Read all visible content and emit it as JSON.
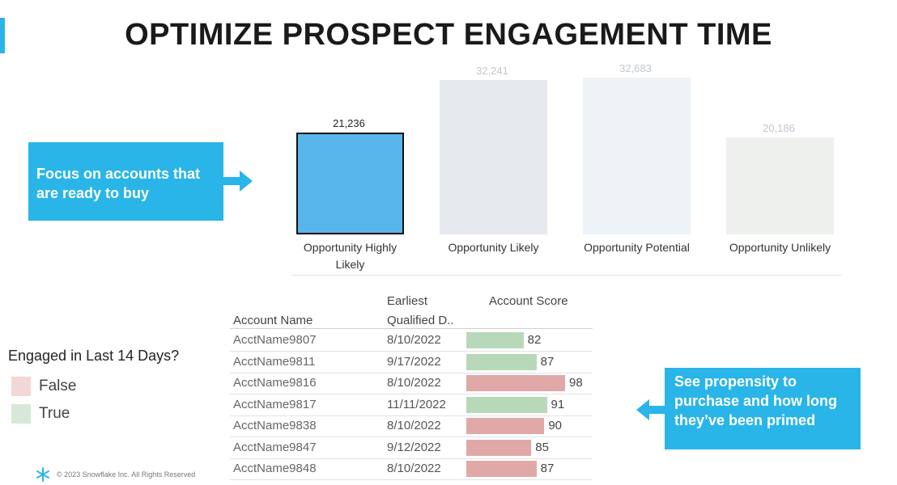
{
  "title": "OPTIMIZE PROSPECT ENGAGEMENT TIME",
  "callouts": {
    "focus": "Focus on accounts that are ready to buy",
    "propensity": "See propensity to purchase and how long they’ve been primed"
  },
  "chart_data": {
    "type": "bar",
    "categories": [
      "Opportunity Highly Likely",
      "Opportunity Likely",
      "Opportunity Potential",
      "Opportunity Unlikely"
    ],
    "values": [
      21236,
      32241,
      32683,
      20186
    ],
    "value_labels": [
      "21,236",
      "32,241",
      "32,683",
      "20,186"
    ],
    "highlighted_index": 0,
    "colors": {
      "highlight": "#58b5ea",
      "faded": [
        "#e6eaee",
        "#eef3f7",
        "#eef0ee"
      ]
    },
    "ylim": [
      0,
      33000
    ]
  },
  "table": {
    "headers": {
      "account_name": "Account Name",
      "earliest_line1": "Earliest",
      "earliest_line2": "Qualified D..",
      "score": "Account Score"
    },
    "rows": [
      {
        "name": "AcctName9807",
        "date": "8/10/2022",
        "score": 82,
        "engaged": true
      },
      {
        "name": "AcctName9811",
        "date": "9/17/2022",
        "score": 87,
        "engaged": true
      },
      {
        "name": "AcctName9816",
        "date": "8/10/2022",
        "score": 98,
        "engaged": false
      },
      {
        "name": "AcctName9817",
        "date": "11/11/2022",
        "score": 91,
        "engaged": true
      },
      {
        "name": "AcctName9838",
        "date": "8/10/2022",
        "score": 90,
        "engaged": false
      },
      {
        "name": "AcctName9847",
        "date": "9/12/2022",
        "score": 85,
        "engaged": false
      },
      {
        "name": "AcctName9848",
        "date": "8/10/2022",
        "score": 87,
        "engaged": false
      }
    ],
    "score_colors": {
      "true": "#b7d8b9",
      "false": "#e0a9a8"
    }
  },
  "legend": {
    "title": "Engaged in Last 14 Days?",
    "items": [
      {
        "label": "False",
        "color": "#f3d6d6"
      },
      {
        "label": "True",
        "color": "#d7e9d6"
      }
    ]
  },
  "footer": {
    "copyright": "© 2023 Snowflake Inc. All Rights Reserved"
  },
  "colors": {
    "accent": "#29b5e8"
  }
}
